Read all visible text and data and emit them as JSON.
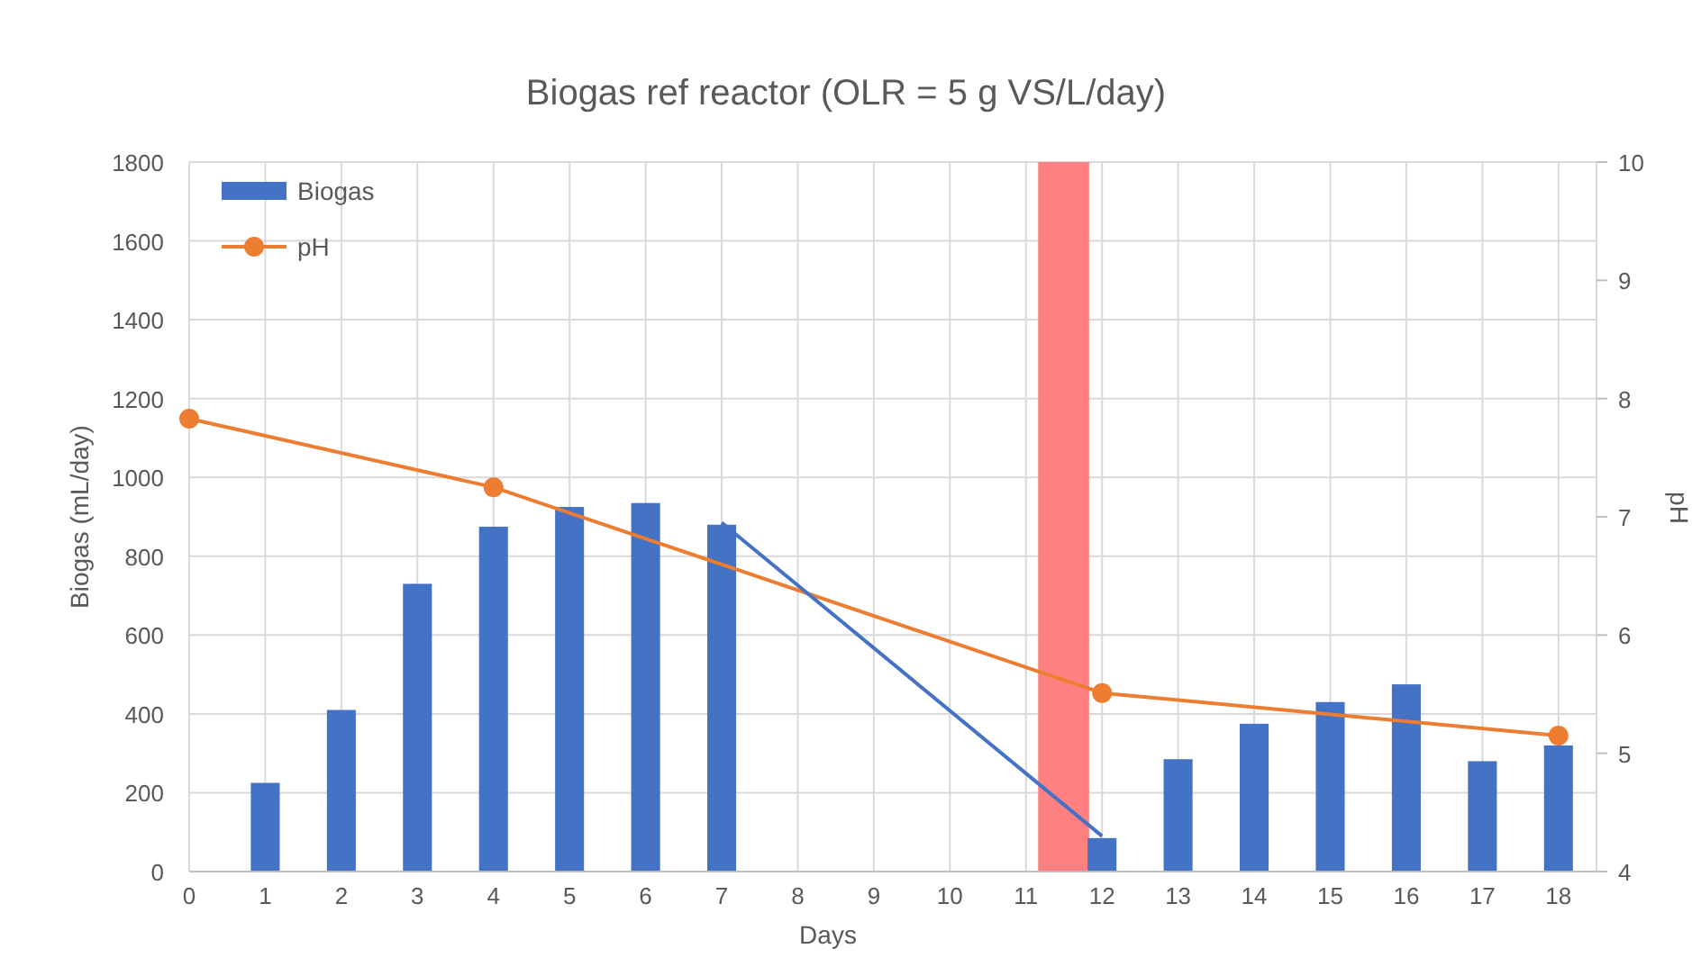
{
  "chart_data": {
    "type": "bar",
    "title": "Biogas ref reactor (OLR = 5 g VS/L/day)",
    "xlabel": "Days",
    "ylabel": "Biogas (mL/day)",
    "y2label": "pH",
    "xlim": [
      0,
      18.5
    ],
    "xticks": [
      0,
      1,
      2,
      3,
      4,
      5,
      6,
      7,
      8,
      9,
      10,
      11,
      12,
      13,
      14,
      15,
      16,
      17,
      18
    ],
    "ylim": [
      0,
      1800
    ],
    "yticks": [
      0,
      200,
      400,
      600,
      800,
      1000,
      1200,
      1400,
      1600,
      1800
    ],
    "y2lim": [
      4,
      10
    ],
    "y2ticks": [
      4,
      5,
      6,
      7,
      8,
      9,
      10
    ],
    "grid": true,
    "legend": "top left",
    "bands": [
      {
        "axis": "x",
        "from": 11.16,
        "to": 11.83,
        "color": "#ff8080"
      }
    ],
    "series": [
      {
        "name": "Biogas",
        "color": "#4472c4",
        "x": [
          1,
          2,
          3,
          4,
          5,
          6,
          7,
          12,
          13,
          14,
          15,
          16,
          17,
          18
        ],
        "values": [
          225,
          410,
          730,
          875,
          925,
          935,
          880,
          85,
          285,
          375,
          430,
          475,
          280,
          320
        ]
      },
      {
        "name": "pH",
        "type": "line",
        "axis": "y2",
        "color": "#ed7d31",
        "marker": "circle",
        "x": [
          0,
          4,
          12,
          18
        ],
        "values": [
          7.83,
          7.25,
          5.51,
          5.15
        ]
      },
      {
        "type": "line",
        "color": "#4472c4",
        "marker": "none",
        "x": [
          7,
          12
        ],
        "values": [
          885,
          90
        ]
      }
    ]
  }
}
